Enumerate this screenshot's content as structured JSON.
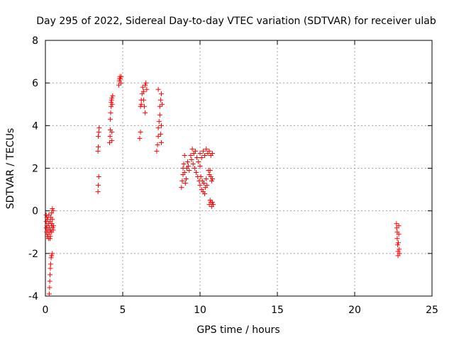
{
  "chart_data": {
    "type": "scatter",
    "title": "Day 295 of 2022, Sidereal Day-to-day VTEC variation (SDTVAR) for receiver ulab",
    "xlabel": "GPS time / hours",
    "ylabel": "SDTVAR / TECUs",
    "xlim": [
      0,
      25
    ],
    "ylim": [
      -4,
      8
    ],
    "xticks": [
      "0",
      "5",
      "10",
      "15",
      "20",
      "25"
    ],
    "yticks": [
      "-4",
      "-2",
      "0",
      "2",
      "4",
      "6",
      "8"
    ],
    "grid": true,
    "legend": "none",
    "marker": "+",
    "color": "#ff0000",
    "series": [
      {
        "points": [
          [
            0.05,
            -0.2
          ],
          [
            0.05,
            -0.5
          ],
          [
            0.05,
            -0.8
          ],
          [
            0.08,
            -1.0
          ],
          [
            0.1,
            -0.3
          ],
          [
            0.1,
            -0.7
          ],
          [
            0.12,
            -1.2
          ],
          [
            0.15,
            -0.4
          ],
          [
            0.15,
            -0.9
          ],
          [
            0.18,
            -1.1
          ],
          [
            0.2,
            -0.6
          ],
          [
            0.2,
            -1.3
          ],
          [
            0.22,
            -0.2
          ],
          [
            0.25,
            -0.8
          ],
          [
            0.28,
            -1.0
          ],
          [
            0.3,
            -0.5
          ],
          [
            0.32,
            -1.2
          ],
          [
            0.35,
            -0.3
          ],
          [
            0.35,
            -0.9
          ],
          [
            0.38,
            -0.7
          ],
          [
            0.4,
            -0.1
          ],
          [
            0.4,
            -1.0
          ],
          [
            0.42,
            -0.6
          ],
          [
            0.45,
            0.1
          ],
          [
            0.45,
            -0.4
          ],
          [
            0.48,
            -0.8
          ],
          [
            0.5,
            0.0
          ],
          [
            0.5,
            -0.9
          ],
          [
            0.52,
            -0.7
          ],
          [
            0.3,
            -1.3
          ],
          [
            0.25,
            -3.9
          ],
          [
            0.27,
            -3.6
          ],
          [
            0.28,
            -3.3
          ],
          [
            0.3,
            -3.0
          ],
          [
            0.32,
            -2.7
          ],
          [
            0.34,
            -2.5
          ],
          [
            0.37,
            -2.2
          ],
          [
            0.4,
            -2.1
          ],
          [
            0.45,
            -2.0
          ],
          [
            3.4,
            0.9
          ],
          [
            3.42,
            1.2
          ],
          [
            3.45,
            1.6
          ],
          [
            3.4,
            2.8
          ],
          [
            3.42,
            3.0
          ],
          [
            3.42,
            3.5
          ],
          [
            3.45,
            3.7
          ],
          [
            3.48,
            3.9
          ],
          [
            4.15,
            3.2
          ],
          [
            4.18,
            3.5
          ],
          [
            4.2,
            3.8
          ],
          [
            4.2,
            4.3
          ],
          [
            4.22,
            4.6
          ],
          [
            4.25,
            4.9
          ],
          [
            4.25,
            5.1
          ],
          [
            4.28,
            5.2
          ],
          [
            4.3,
            5.3
          ],
          [
            4.32,
            5.0
          ],
          [
            4.35,
            5.4
          ],
          [
            4.3,
            3.3
          ],
          [
            4.3,
            3.7
          ],
          [
            4.75,
            5.9
          ],
          [
            4.78,
            6.1
          ],
          [
            4.8,
            6.2
          ],
          [
            4.82,
            6.3
          ],
          [
            4.85,
            6.2
          ],
          [
            4.88,
            6.0
          ],
          [
            4.9,
            6.3
          ],
          [
            6.1,
            3.4
          ],
          [
            6.15,
            3.7
          ],
          [
            6.15,
            4.9
          ],
          [
            6.2,
            5.2
          ],
          [
            6.25,
            5.5
          ],
          [
            6.3,
            5.8
          ],
          [
            6.35,
            5.6
          ],
          [
            6.35,
            5.2
          ],
          [
            6.4,
            4.9
          ],
          [
            6.45,
            4.6
          ],
          [
            6.45,
            5.9
          ],
          [
            6.5,
            6.0
          ],
          [
            6.55,
            5.7
          ],
          [
            6.2,
            5.0
          ],
          [
            7.2,
            2.8
          ],
          [
            7.25,
            3.1
          ],
          [
            7.3,
            3.5
          ],
          [
            7.3,
            3.9
          ],
          [
            7.35,
            4.2
          ],
          [
            7.4,
            4.5
          ],
          [
            7.4,
            4.9
          ],
          [
            7.45,
            5.2
          ],
          [
            7.5,
            5.5
          ],
          [
            7.45,
            3.6
          ],
          [
            7.5,
            3.2
          ],
          [
            7.5,
            4.0
          ],
          [
            7.55,
            5.0
          ],
          [
            7.3,
            5.7
          ],
          [
            8.8,
            1.1
          ],
          [
            8.85,
            1.4
          ],
          [
            8.9,
            1.7
          ],
          [
            8.9,
            2.0
          ],
          [
            8.95,
            2.2
          ],
          [
            9.0,
            2.6
          ],
          [
            9.0,
            1.8
          ],
          [
            9.05,
            1.3
          ],
          [
            9.1,
            1.5
          ],
          [
            9.15,
            2.0
          ],
          [
            9.2,
            2.3
          ],
          [
            9.25,
            2.1
          ],
          [
            9.3,
            1.9
          ],
          [
            9.4,
            2.6
          ],
          [
            9.45,
            2.4
          ],
          [
            9.5,
            2.9
          ],
          [
            9.55,
            2.2
          ],
          [
            9.6,
            2.7
          ],
          [
            9.65,
            2.0
          ],
          [
            9.7,
            2.8
          ],
          [
            9.75,
            1.8
          ],
          [
            9.8,
            2.5
          ],
          [
            9.85,
            1.6
          ],
          [
            9.9,
            2.3
          ],
          [
            9.95,
            1.4
          ],
          [
            10.0,
            2.1
          ],
          [
            10.0,
            1.2
          ],
          [
            10.05,
            1.6
          ],
          [
            10.1,
            1.0
          ],
          [
            10.15,
            1.4
          ],
          [
            10.2,
            0.9
          ],
          [
            10.25,
            1.3
          ],
          [
            10.3,
            0.8
          ],
          [
            10.35,
            1.1
          ],
          [
            10.4,
            1.5
          ],
          [
            10.45,
            1.2
          ],
          [
            10.0,
            2.7
          ],
          [
            10.1,
            2.5
          ],
          [
            10.2,
            2.8
          ],
          [
            10.3,
            2.6
          ],
          [
            10.4,
            2.9
          ],
          [
            10.5,
            2.7
          ],
          [
            10.6,
            2.8
          ],
          [
            10.7,
            2.6
          ],
          [
            10.8,
            2.7
          ],
          [
            10.55,
            1.9
          ],
          [
            10.6,
            1.7
          ],
          [
            10.65,
            1.9
          ],
          [
            10.7,
            1.6
          ],
          [
            10.75,
            1.4
          ],
          [
            10.8,
            1.5
          ],
          [
            10.6,
            0.3
          ],
          [
            10.65,
            0.5
          ],
          [
            10.7,
            0.4
          ],
          [
            10.75,
            0.2
          ],
          [
            10.8,
            0.4
          ],
          [
            10.85,
            0.3
          ],
          [
            22.7,
            -0.6
          ],
          [
            22.72,
            -0.8
          ],
          [
            22.75,
            -1.0
          ],
          [
            22.75,
            -1.3
          ],
          [
            22.78,
            -1.6
          ],
          [
            22.8,
            -1.9
          ],
          [
            22.8,
            -2.1
          ],
          [
            22.82,
            -1.5
          ],
          [
            22.85,
            -1.1
          ],
          [
            22.85,
            -0.7
          ],
          [
            22.88,
            -1.8
          ],
          [
            22.9,
            -2.0
          ]
        ]
      }
    ]
  }
}
